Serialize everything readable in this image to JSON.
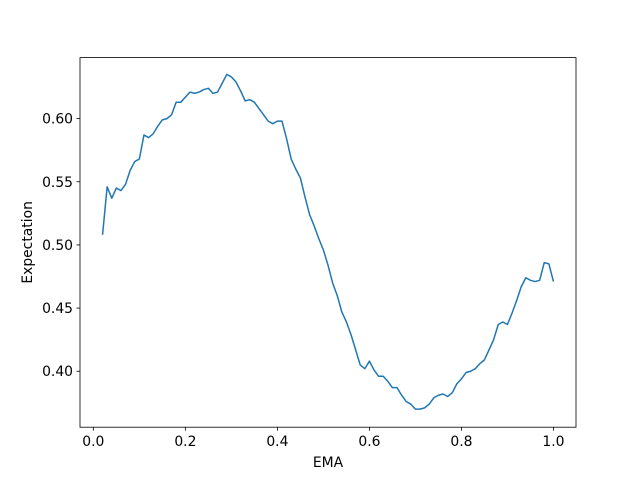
{
  "chart_data": {
    "type": "line",
    "x_label": "EMA",
    "y_label": "Expectation",
    "color": "#1f77b4",
    "x": [
      0.02,
      0.03,
      0.04,
      0.05,
      0.06,
      0.07,
      0.08,
      0.09,
      0.1,
      0.11,
      0.12,
      0.13,
      0.14,
      0.15,
      0.16,
      0.17,
      0.18,
      0.19,
      0.2,
      0.21,
      0.22,
      0.23,
      0.24,
      0.25,
      0.26,
      0.27,
      0.28,
      0.29,
      0.3,
      0.31,
      0.32,
      0.33,
      0.34,
      0.35,
      0.36,
      0.37,
      0.38,
      0.39,
      0.4,
      0.41,
      0.42,
      0.43,
      0.44,
      0.45,
      0.46,
      0.47,
      0.48,
      0.49,
      0.5,
      0.51,
      0.52,
      0.53,
      0.54,
      0.55,
      0.56,
      0.57,
      0.58,
      0.59,
      0.6,
      0.61,
      0.62,
      0.63,
      0.64,
      0.65,
      0.66,
      0.67,
      0.68,
      0.69,
      0.7,
      0.71,
      0.72,
      0.73,
      0.74,
      0.75,
      0.76,
      0.77,
      0.78,
      0.79,
      0.8,
      0.81,
      0.82,
      0.83,
      0.84,
      0.85,
      0.86,
      0.87,
      0.88,
      0.89,
      0.9,
      0.91,
      0.92,
      0.93,
      0.94,
      0.95,
      0.96,
      0.97,
      0.98,
      0.99,
      1.0
    ],
    "values": [
      0.508,
      0.546,
      0.537,
      0.545,
      0.543,
      0.548,
      0.559,
      0.566,
      0.568,
      0.587,
      0.585,
      0.588,
      0.594,
      0.599,
      0.6,
      0.603,
      0.613,
      0.613,
      0.617,
      0.621,
      0.62,
      0.621,
      0.623,
      0.624,
      0.62,
      0.621,
      0.628,
      0.635,
      0.633,
      0.629,
      0.622,
      0.614,
      0.615,
      0.613,
      0.608,
      0.603,
      0.598,
      0.596,
      0.598,
      0.598,
      0.584,
      0.568,
      0.56,
      0.553,
      0.538,
      0.524,
      0.515,
      0.505,
      0.496,
      0.484,
      0.47,
      0.46,
      0.447,
      0.439,
      0.429,
      0.417,
      0.405,
      0.402,
      0.408,
      0.401,
      0.396,
      0.396,
      0.392,
      0.387,
      0.387,
      0.381,
      0.376,
      0.374,
      0.37,
      0.37,
      0.371,
      0.374,
      0.379,
      0.381,
      0.382,
      0.38,
      0.383,
      0.39,
      0.394,
      0.399,
      0.4,
      0.402,
      0.406,
      0.409,
      0.417,
      0.425,
      0.437,
      0.439,
      0.437,
      0.446,
      0.456,
      0.467,
      0.474,
      0.472,
      0.471,
      0.472,
      0.486,
      0.485,
      0.471
    ],
    "xlim": [
      -0.029,
      1.049
    ],
    "ylim": [
      0.3557,
      0.6483
    ],
    "xticks": [
      {
        "value": 0,
        "label": "0.0"
      },
      0.2,
      0.4,
      0.6,
      0.8,
      {
        "value": 1,
        "label": "1.0"
      }
    ],
    "yticks": [
      {
        "value": 0.4,
        "label": "0.40"
      },
      0.45,
      {
        "value": 0.5,
        "label": "0.50"
      },
      0.55,
      {
        "value": 0.6,
        "label": "0.60"
      }
    ]
  }
}
